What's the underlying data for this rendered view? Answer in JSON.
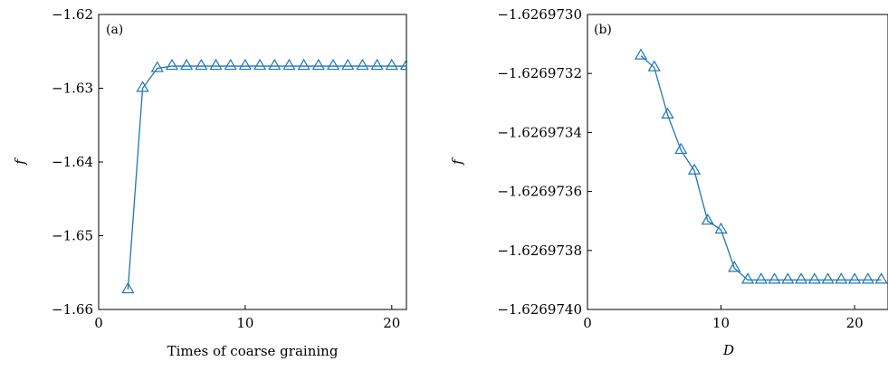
{
  "chart_data": [
    {
      "type": "line",
      "panel_label": "(a)",
      "title": "",
      "xlabel": "Times of coarse graining",
      "ylabel": "f",
      "xlim": [
        0,
        21
      ],
      "ylim": [
        -1.66,
        -1.62
      ],
      "x_ticks": [
        0,
        10,
        20
      ],
      "x_tick_labels": [
        "0",
        "10",
        "20"
      ],
      "y_ticks": [
        -1.66,
        -1.65,
        -1.64,
        -1.63,
        -1.62
      ],
      "y_tick_labels": [
        "−1.66",
        "−1.65",
        "−1.64",
        "−1.63",
        "−1.62"
      ],
      "grid": false,
      "legend": "none",
      "marker": "triangle",
      "color": "#1f77b4",
      "series": [
        {
          "x": [
            2,
            3,
            4,
            5,
            6,
            7,
            8,
            9,
            10,
            11,
            12,
            13,
            14,
            15,
            16,
            17,
            18,
            19,
            20,
            21
          ],
          "y": [
            -1.6573,
            -1.63,
            -1.6273,
            -1.627,
            -1.627,
            -1.627,
            -1.627,
            -1.627,
            -1.627,
            -1.627,
            -1.627,
            -1.627,
            -1.627,
            -1.627,
            -1.627,
            -1.627,
            -1.627,
            -1.627,
            -1.627,
            -1.627
          ]
        }
      ]
    },
    {
      "type": "line",
      "panel_label": "(b)",
      "title": "",
      "xlabel": "D",
      "ylabel": "f",
      "xlim": [
        0,
        22.5
      ],
      "ylim": [
        -1.626974,
        -1.626973
      ],
      "x_ticks": [
        0,
        10,
        20
      ],
      "x_tick_labels": [
        "0",
        "10",
        "20"
      ],
      "y_ticks": [
        -1.626974,
        -1.6269738,
        -1.6269736,
        -1.6269734,
        -1.6269732,
        -1.626973
      ],
      "y_tick_labels": [
        "−1.6269740",
        "−1.6269738",
        "−1.6269736",
        "−1.6269734",
        "−1.6269732",
        "−1.6269730"
      ],
      "grid": false,
      "legend": "none",
      "marker": "triangle",
      "color": "#1f77b4",
      "series": [
        {
          "x": [
            4,
            5,
            6,
            7,
            8,
            9,
            10,
            11,
            12,
            13,
            14,
            15,
            16,
            17,
            18,
            19,
            20,
            21,
            22
          ],
          "y": [
            -1.62697314,
            -1.62697318,
            -1.62697334,
            -1.62697346,
            -1.62697353,
            -1.6269737,
            -1.62697373,
            -1.62697386,
            -1.6269739,
            -1.6269739,
            -1.6269739,
            -1.6269739,
            -1.6269739,
            -1.6269739,
            -1.6269739,
            -1.6269739,
            -1.6269739,
            -1.6269739,
            -1.6269739
          ]
        }
      ]
    }
  ]
}
